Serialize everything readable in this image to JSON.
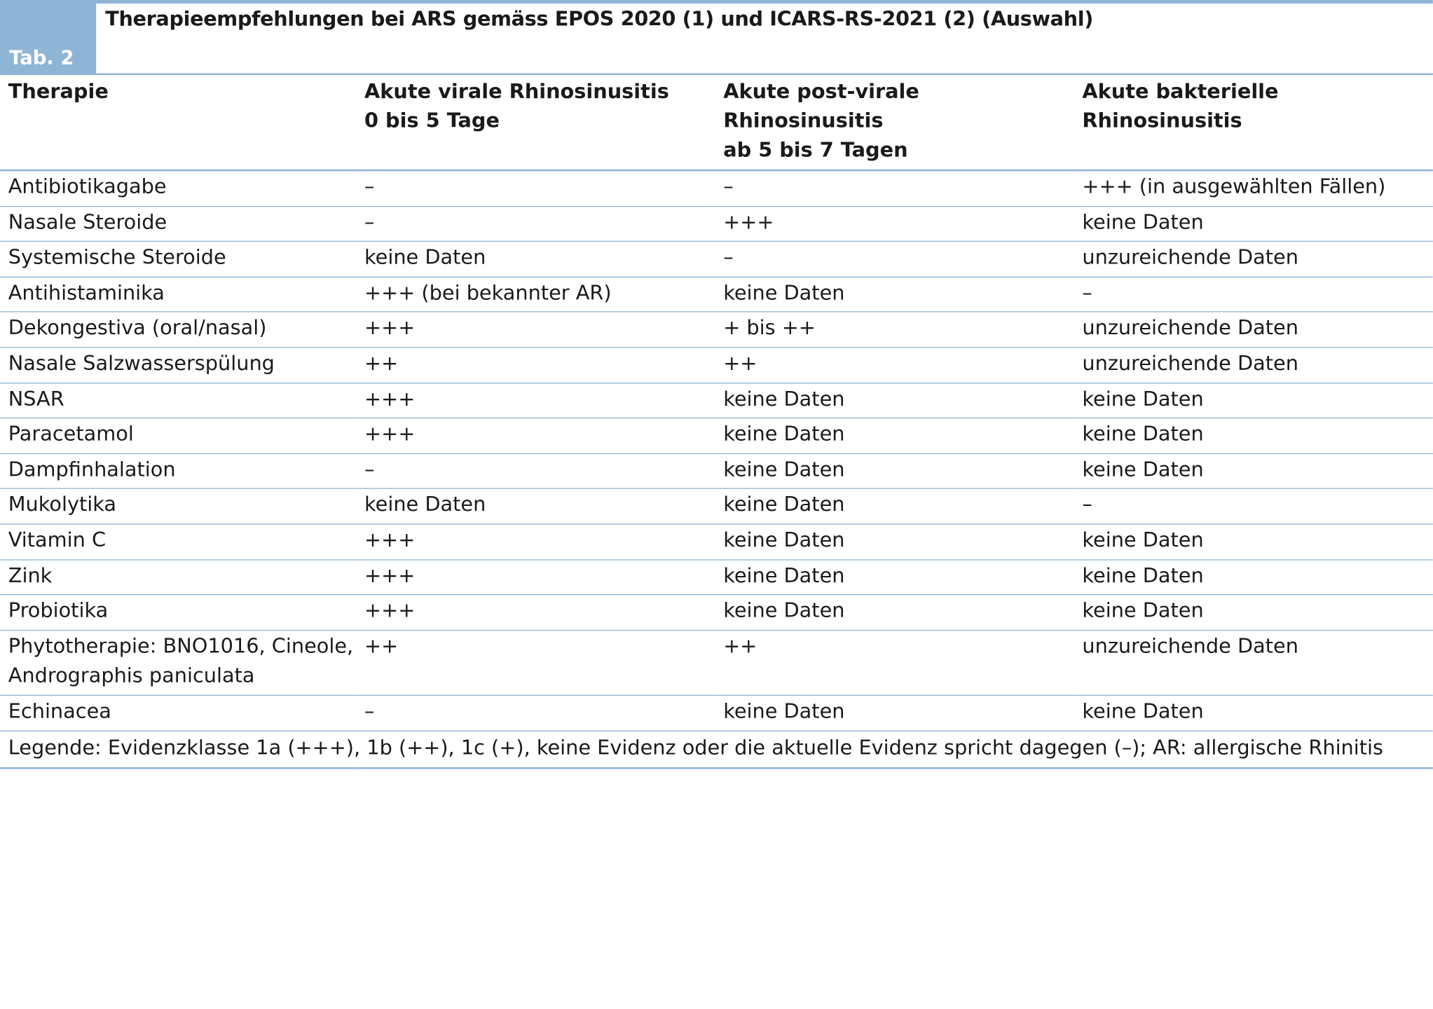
{
  "table": {
    "tab_label": "Tab. 2",
    "title": "Therapieempfehlungen bei ARS gemäss EPOS 2020 (1) und ICARS-RS-2021 (2) (Auswahl)",
    "columns": [
      {
        "line1": "Therapie",
        "line2": ""
      },
      {
        "line1": "Akute virale Rhinosinusitis",
        "line2": "0 bis 5 Tage"
      },
      {
        "line1": "Akute post-virale Rhinosinusitis",
        "line2": "ab 5 bis 7 Tagen"
      },
      {
        "line1": "Akute bakterielle Rhinosinusitis",
        "line2": ""
      }
    ],
    "rows": [
      [
        "Antibiotikagabe",
        "–",
        "–",
        "+++ (in ausgewählten Fällen)"
      ],
      [
        "Nasale Steroide",
        "–",
        "+++",
        "keine Daten"
      ],
      [
        "Systemische Steroide",
        "keine Daten",
        "–",
        "unzureichende Daten"
      ],
      [
        "Antihistaminika",
        "+++ (bei bekannter AR)",
        "keine Daten",
        "–"
      ],
      [
        "Dekongestiva (oral/nasal)",
        "+++",
        "+ bis ++",
        "unzureichende Daten"
      ],
      [
        "Nasale Salzwasserspülung",
        "++",
        "++",
        "unzureichende Daten"
      ],
      [
        "NSAR",
        "+++",
        "keine Daten",
        "keine Daten"
      ],
      [
        "Paracetamol",
        "+++",
        "keine Daten",
        "keine Daten"
      ],
      [
        "Dampfinhalation",
        "–",
        "keine Daten",
        "keine Daten"
      ],
      [
        "Mukolytika",
        "keine Daten",
        "keine Daten",
        "–"
      ],
      [
        "Vitamin C",
        "+++",
        "keine Daten",
        "keine Daten"
      ],
      [
        "Zink",
        "+++",
        "keine Daten",
        "keine Daten"
      ],
      [
        "Probiotika",
        "+++",
        "keine Daten",
        "keine Daten"
      ],
      [
        "Phytotherapie: BNO1016, Cineole, Andrographis paniculata",
        "++",
        "++",
        "unzureichende Daten"
      ],
      [
        "Echinacea",
        "–",
        "keine Daten",
        "keine Daten"
      ]
    ],
    "legend": "Legende: Evidenzklasse 1a (+++), 1b (++), 1c (+), keine Evidenz oder die aktuelle Evidenz spricht dagegen (–); AR: allergische Rhinitis",
    "accent_color": "#8fb5d6"
  }
}
